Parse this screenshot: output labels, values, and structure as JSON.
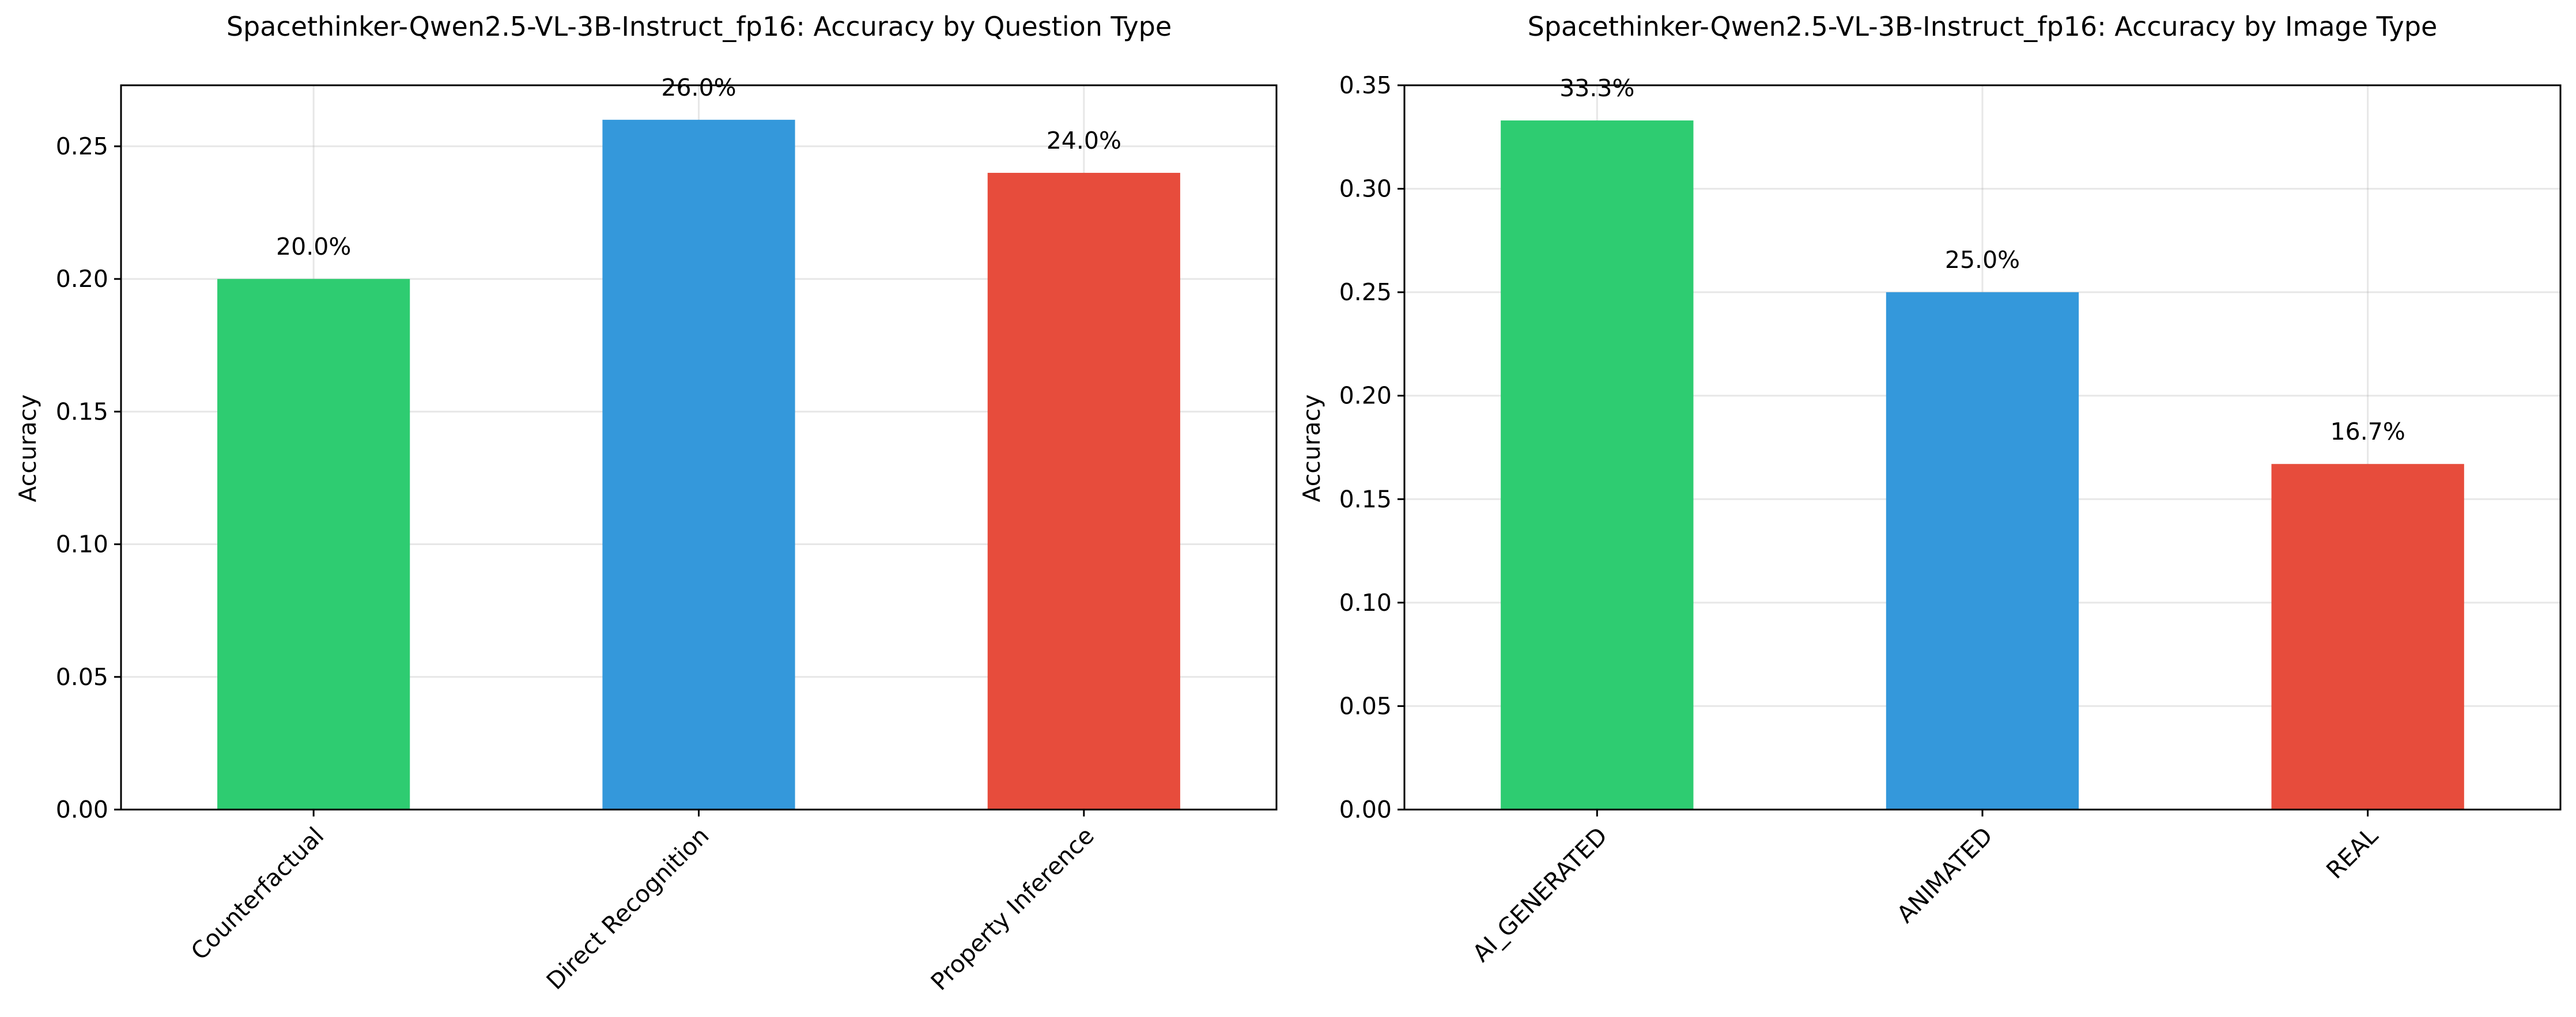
{
  "chart_data": [
    {
      "type": "bar",
      "title": "Spacethinker-Qwen2.5-VL-3B-Instruct_fp16: Accuracy by Question Type",
      "xlabel": "",
      "ylabel": "Accuracy",
      "categories": [
        "Counterfactual",
        "Direct Recognition",
        "Property Inference"
      ],
      "values": [
        0.2,
        0.26,
        0.24
      ],
      "data_labels": [
        "20.0%",
        "26.0%",
        "24.0%"
      ],
      "colors": [
        "#2ecc71",
        "#3498db",
        "#e74c3c"
      ],
      "ylim": [
        0,
        0.273
      ],
      "yticks": [
        0.0,
        0.05,
        0.1,
        0.15,
        0.2,
        0.25
      ],
      "ytick_labels": [
        "0.00",
        "0.05",
        "0.10",
        "0.15",
        "0.20",
        "0.25"
      ],
      "grid": true,
      "xtick_rotation": 45
    },
    {
      "type": "bar",
      "title": "Spacethinker-Qwen2.5-VL-3B-Instruct_fp16: Accuracy by Image Type",
      "xlabel": "",
      "ylabel": "Accuracy",
      "categories": [
        "AI_GENERATED",
        "ANIMATED",
        "REAL"
      ],
      "values": [
        0.333,
        0.25,
        0.167
      ],
      "data_labels": [
        "33.3%",
        "25.0%",
        "16.7%"
      ],
      "colors": [
        "#2ecc71",
        "#3498db",
        "#e74c3c"
      ],
      "ylim": [
        0,
        0.35
      ],
      "yticks": [
        0.0,
        0.05,
        0.1,
        0.15,
        0.2,
        0.25,
        0.3,
        0.35
      ],
      "ytick_labels": [
        "0.00",
        "0.05",
        "0.10",
        "0.15",
        "0.20",
        "0.25",
        "0.30",
        "0.35"
      ],
      "grid": true,
      "xtick_rotation": 45
    }
  ]
}
